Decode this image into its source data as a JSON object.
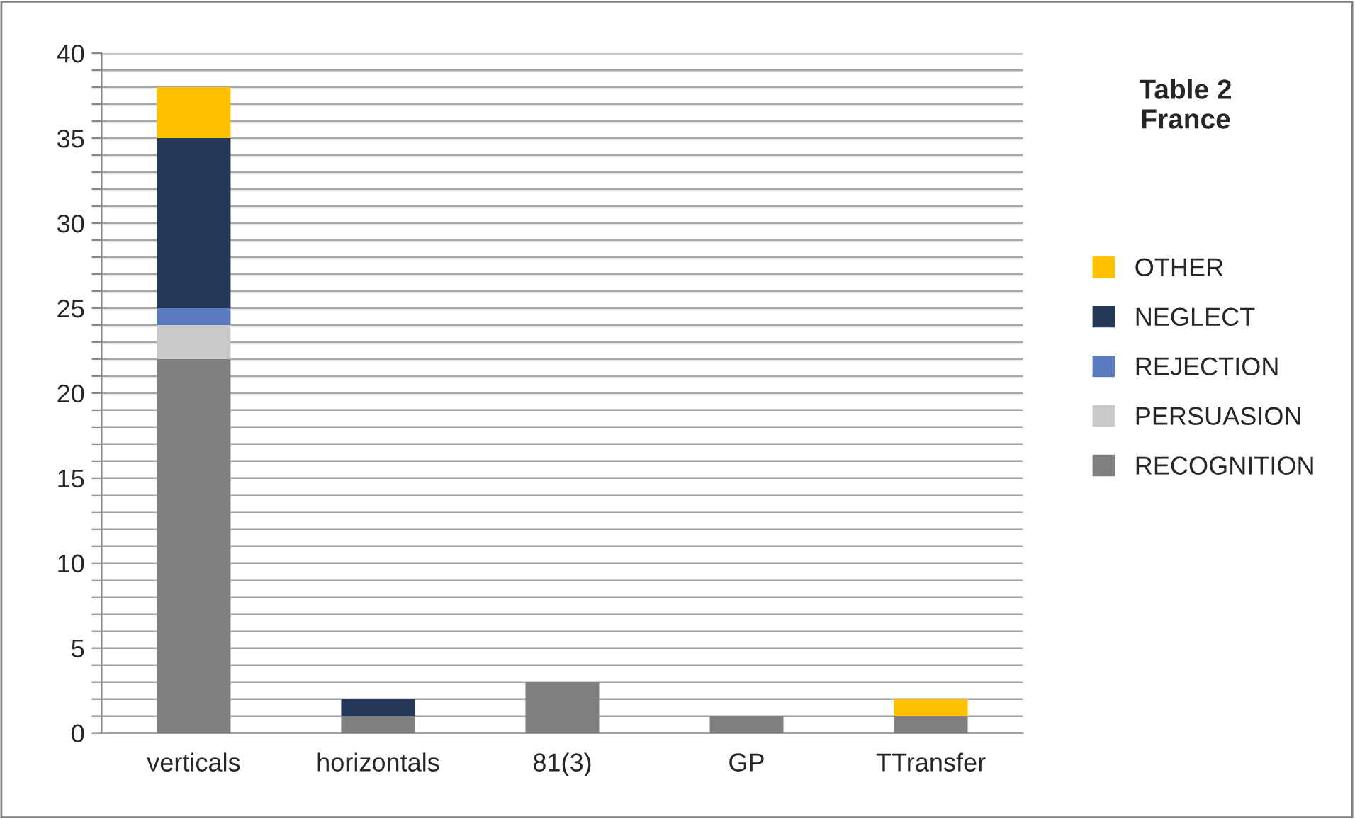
{
  "chart_data": {
    "type": "bar",
    "title": "Table 2\nFrance",
    "stacked": true,
    "categories": [
      "verticals",
      "horizontals",
      "81(3)",
      "GP",
      "TTransfer"
    ],
    "series": [
      {
        "name": "RECOGNITION",
        "color": "#7f7f7f",
        "values": [
          22,
          1,
          3,
          1,
          1
        ]
      },
      {
        "name": "PERSUASION",
        "color": "#c9c9c9",
        "values": [
          2,
          null,
          null,
          null,
          null
        ]
      },
      {
        "name": "REJECTION",
        "color": "#5b7bc0",
        "values": [
          1,
          null,
          null,
          null,
          null
        ]
      },
      {
        "name": "NEGLECT",
        "color": "#263859",
        "values": [
          10,
          1,
          null,
          null,
          null
        ]
      },
      {
        "name": "OTHER",
        "color": "#ffc000",
        "values": [
          3,
          null,
          null,
          null,
          1
        ]
      }
    ],
    "ylim": [
      0,
      40
    ],
    "yticks": [
      0,
      {
        "value": 1,
        "label": null
      },
      {
        "value": 2,
        "label": null
      },
      {
        "value": 3,
        "label": null
      },
      {
        "value": 4,
        "label": null
      },
      5,
      {
        "value": 6,
        "label": null
      },
      {
        "value": 7,
        "label": null
      },
      {
        "value": 8,
        "label": null
      },
      {
        "value": 9,
        "label": null
      },
      10,
      {
        "value": 11,
        "label": null
      },
      {
        "value": 12,
        "label": null
      },
      {
        "value": 13,
        "label": null
      },
      {
        "value": 14,
        "label": null
      },
      15,
      {
        "value": 16,
        "label": null
      },
      {
        "value": 17,
        "label": null
      },
      {
        "value": 18,
        "label": null
      },
      {
        "value": 19,
        "label": null
      },
      20,
      {
        "value": 21,
        "label": null
      },
      {
        "value": 22,
        "label": null
      },
      {
        "value": 23,
        "label": null
      },
      {
        "value": 24,
        "label": null
      },
      25,
      {
        "value": 26,
        "label": null
      },
      {
        "value": 27,
        "label": null
      },
      {
        "value": 28,
        "label": null
      },
      {
        "value": 29,
        "label": null
      },
      30,
      {
        "value": 31,
        "label": null
      },
      {
        "value": 32,
        "label": null
      },
      {
        "value": 33,
        "label": null
      },
      {
        "value": 34,
        "label": null
      },
      35,
      {
        "value": 36,
        "label": null
      },
      {
        "value": 37,
        "label": null
      },
      {
        "value": 38,
        "label": null
      },
      {
        "value": 39,
        "label": null
      },
      40
    ],
    "grid": "y",
    "legend": "right"
  }
}
